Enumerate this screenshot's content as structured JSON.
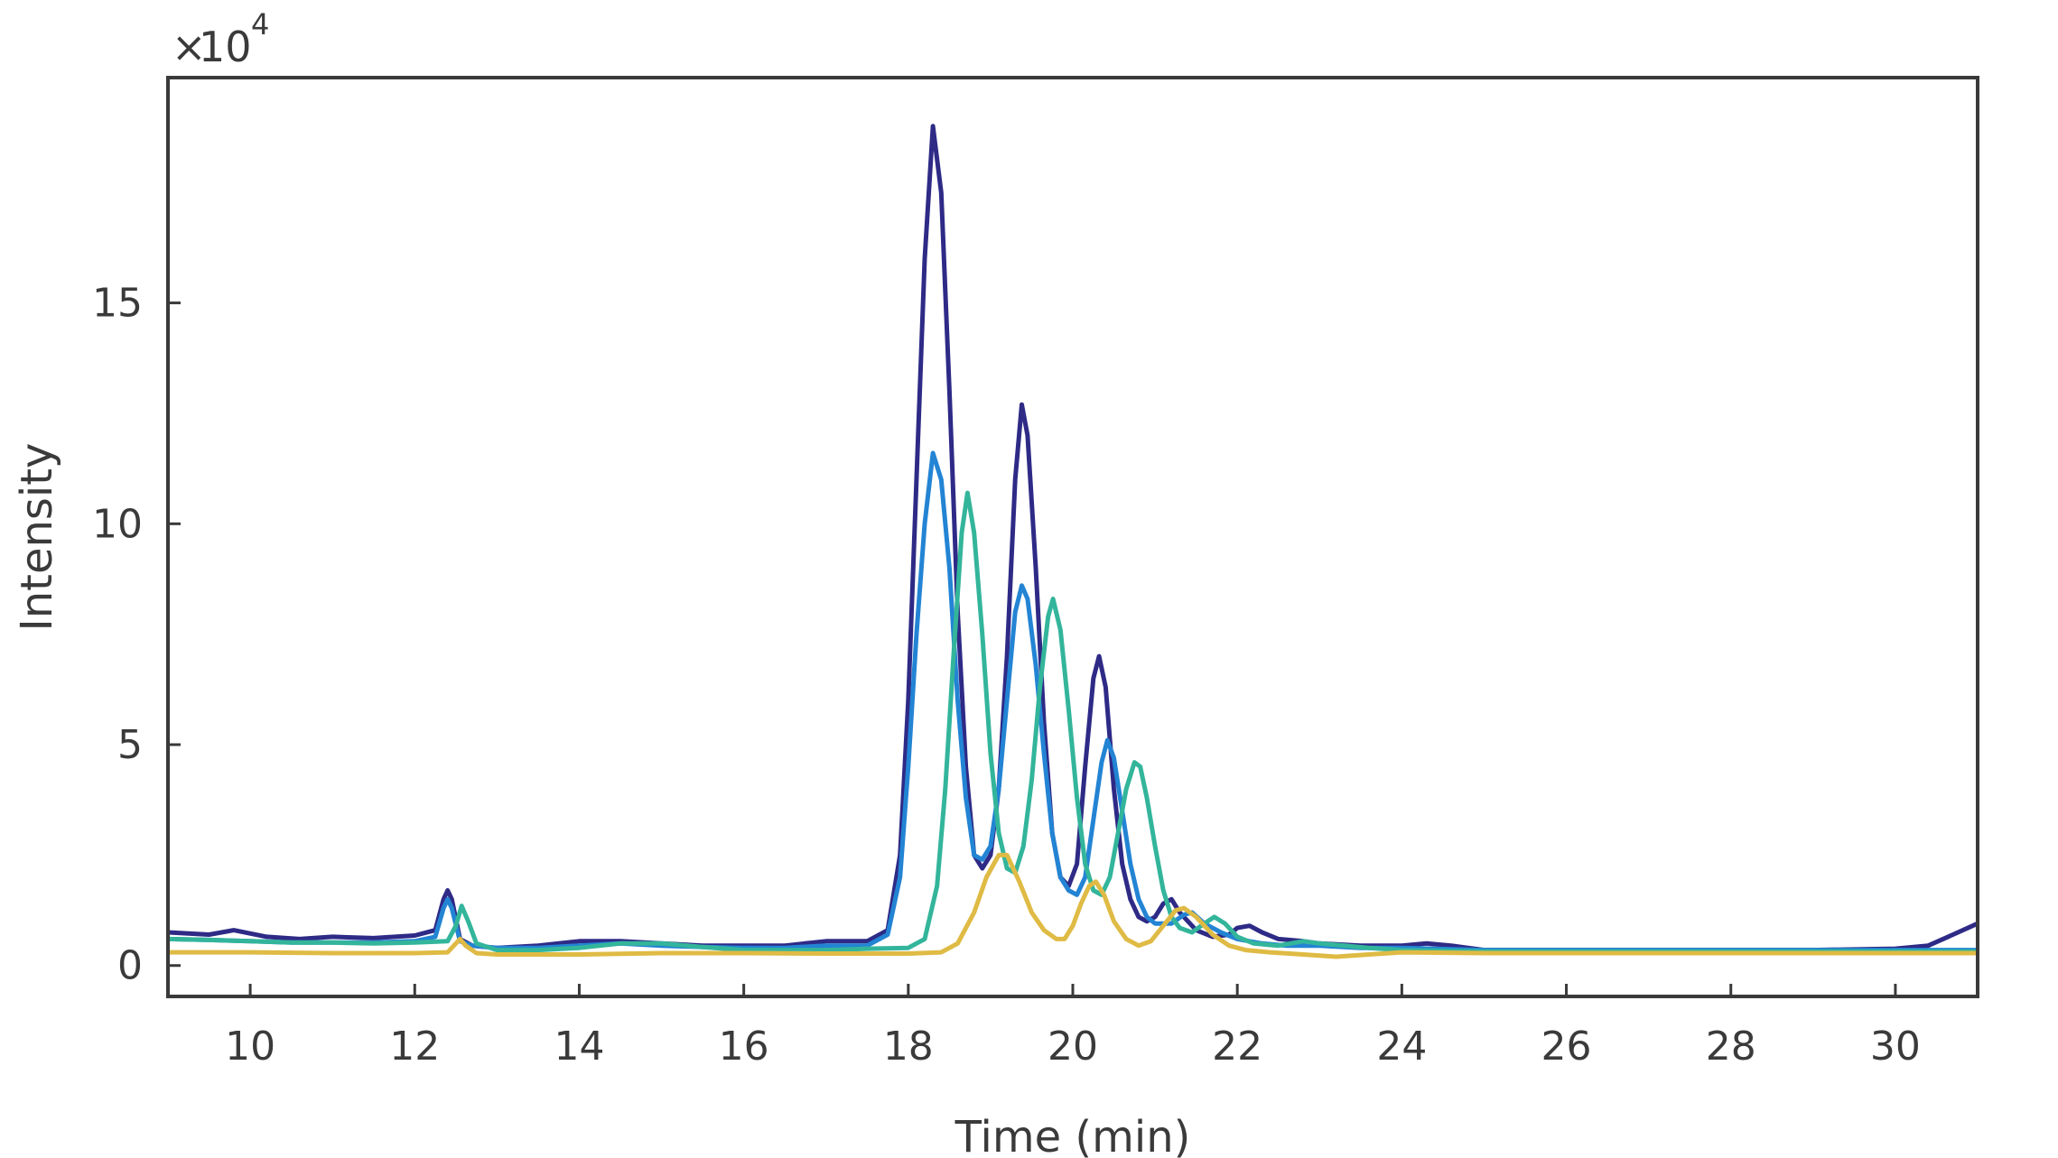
{
  "chart_data": {
    "type": "line",
    "xlabel": "Time (min)",
    "ylabel": "Intensity",
    "xlim": [
      9,
      31
    ],
    "ylim": [
      -0.7,
      20.1
    ],
    "y_scale_multiplier": {
      "times": "×",
      "base": "10",
      "exponent": "4"
    },
    "x_ticks": [
      10,
      12,
      14,
      16,
      18,
      20,
      22,
      24,
      26,
      28,
      30
    ],
    "y_ticks": [
      0,
      5,
      10,
      15
    ],
    "grid": false,
    "legend": "none",
    "series": [
      {
        "color": "#2e2a86",
        "points": [
          [
            9,
            0.75
          ],
          [
            9.5,
            0.7
          ],
          [
            9.8,
            0.8
          ],
          [
            10.2,
            0.65
          ],
          [
            10.6,
            0.6
          ],
          [
            11.0,
            0.65
          ],
          [
            11.5,
            0.62
          ],
          [
            12.0,
            0.68
          ],
          [
            12.25,
            0.8
          ],
          [
            12.35,
            1.5
          ],
          [
            12.4,
            1.7
          ],
          [
            12.45,
            1.5
          ],
          [
            12.55,
            0.6
          ],
          [
            12.7,
            0.45
          ],
          [
            13.0,
            0.4
          ],
          [
            13.5,
            0.45
          ],
          [
            14.0,
            0.55
          ],
          [
            14.5,
            0.55
          ],
          [
            15.0,
            0.5
          ],
          [
            15.5,
            0.45
          ],
          [
            16.0,
            0.45
          ],
          [
            16.5,
            0.45
          ],
          [
            17.0,
            0.55
          ],
          [
            17.5,
            0.55
          ],
          [
            17.75,
            0.8
          ],
          [
            17.9,
            2.5
          ],
          [
            18.0,
            6.0
          ],
          [
            18.1,
            11.0
          ],
          [
            18.2,
            16.0
          ],
          [
            18.3,
            19.0
          ],
          [
            18.4,
            17.5
          ],
          [
            18.5,
            13.0
          ],
          [
            18.6,
            8.0
          ],
          [
            18.7,
            4.5
          ],
          [
            18.8,
            2.5
          ],
          [
            18.9,
            2.2
          ],
          [
            19.0,
            2.5
          ],
          [
            19.1,
            4.0
          ],
          [
            19.2,
            7.0
          ],
          [
            19.3,
            11.0
          ],
          [
            19.38,
            12.7
          ],
          [
            19.45,
            12.0
          ],
          [
            19.55,
            9.0
          ],
          [
            19.65,
            5.5
          ],
          [
            19.75,
            3.0
          ],
          [
            19.85,
            2.0
          ],
          [
            19.95,
            1.8
          ],
          [
            20.05,
            2.3
          ],
          [
            20.15,
            4.5
          ],
          [
            20.25,
            6.5
          ],
          [
            20.32,
            7.0
          ],
          [
            20.4,
            6.3
          ],
          [
            20.5,
            4.0
          ],
          [
            20.6,
            2.3
          ],
          [
            20.7,
            1.5
          ],
          [
            20.8,
            1.1
          ],
          [
            20.9,
            1.0
          ],
          [
            21.0,
            1.1
          ],
          [
            21.1,
            1.4
          ],
          [
            21.2,
            1.5
          ],
          [
            21.3,
            1.2
          ],
          [
            21.5,
            0.8
          ],
          [
            21.7,
            0.65
          ],
          [
            21.9,
            0.7
          ],
          [
            22.0,
            0.85
          ],
          [
            22.15,
            0.9
          ],
          [
            22.3,
            0.75
          ],
          [
            22.5,
            0.6
          ],
          [
            22.8,
            0.55
          ],
          [
            23.0,
            0.5
          ],
          [
            23.5,
            0.45
          ],
          [
            24.0,
            0.45
          ],
          [
            24.3,
            0.5
          ],
          [
            24.6,
            0.45
          ],
          [
            25.0,
            0.35
          ],
          [
            26.0,
            0.35
          ],
          [
            27.0,
            0.35
          ],
          [
            28.0,
            0.35
          ],
          [
            29.0,
            0.35
          ],
          [
            30.0,
            0.38
          ],
          [
            30.4,
            0.45
          ],
          [
            30.7,
            0.7
          ],
          [
            31.0,
            0.95
          ]
        ]
      },
      {
        "color": "#2384d4",
        "points": [
          [
            9,
            0.6
          ],
          [
            9.5,
            0.58
          ],
          [
            10.0,
            0.55
          ],
          [
            10.5,
            0.52
          ],
          [
            11.0,
            0.52
          ],
          [
            11.5,
            0.52
          ],
          [
            12.0,
            0.55
          ],
          [
            12.25,
            0.65
          ],
          [
            12.35,
            1.3
          ],
          [
            12.4,
            1.5
          ],
          [
            12.45,
            1.3
          ],
          [
            12.55,
            0.55
          ],
          [
            12.7,
            0.45
          ],
          [
            13.0,
            0.4
          ],
          [
            13.5,
            0.4
          ],
          [
            14.0,
            0.45
          ],
          [
            14.5,
            0.5
          ],
          [
            15.0,
            0.45
          ],
          [
            15.5,
            0.42
          ],
          [
            16.0,
            0.4
          ],
          [
            16.5,
            0.4
          ],
          [
            17.0,
            0.45
          ],
          [
            17.5,
            0.45
          ],
          [
            17.75,
            0.7
          ],
          [
            17.9,
            2.0
          ],
          [
            18.0,
            4.5
          ],
          [
            18.1,
            7.5
          ],
          [
            18.2,
            10.0
          ],
          [
            18.3,
            11.6
          ],
          [
            18.4,
            11.0
          ],
          [
            18.5,
            9.0
          ],
          [
            18.6,
            6.0
          ],
          [
            18.7,
            3.8
          ],
          [
            18.8,
            2.5
          ],
          [
            18.9,
            2.4
          ],
          [
            19.0,
            2.7
          ],
          [
            19.1,
            4.0
          ],
          [
            19.2,
            6.0
          ],
          [
            19.3,
            8.0
          ],
          [
            19.38,
            8.6
          ],
          [
            19.45,
            8.3
          ],
          [
            19.55,
            6.8
          ],
          [
            19.65,
            4.8
          ],
          [
            19.75,
            3.0
          ],
          [
            19.85,
            2.0
          ],
          [
            19.95,
            1.7
          ],
          [
            20.05,
            1.6
          ],
          [
            20.15,
            2.0
          ],
          [
            20.25,
            3.3
          ],
          [
            20.35,
            4.6
          ],
          [
            20.42,
            5.1
          ],
          [
            20.5,
            4.7
          ],
          [
            20.6,
            3.5
          ],
          [
            20.7,
            2.3
          ],
          [
            20.8,
            1.5
          ],
          [
            20.9,
            1.1
          ],
          [
            21.0,
            0.95
          ],
          [
            21.2,
            0.95
          ],
          [
            21.35,
            1.15
          ],
          [
            21.45,
            1.2
          ],
          [
            21.6,
            0.95
          ],
          [
            21.8,
            0.75
          ],
          [
            22.0,
            0.6
          ],
          [
            22.3,
            0.5
          ],
          [
            22.6,
            0.45
          ],
          [
            23.0,
            0.45
          ],
          [
            23.5,
            0.4
          ],
          [
            24.0,
            0.4
          ],
          [
            25.0,
            0.35
          ],
          [
            26.0,
            0.35
          ],
          [
            27.0,
            0.35
          ],
          [
            28.0,
            0.35
          ],
          [
            29.0,
            0.35
          ],
          [
            30.0,
            0.35
          ],
          [
            31.0,
            0.35
          ]
        ]
      },
      {
        "color": "#33b59b",
        "points": [
          [
            9,
            0.6
          ],
          [
            9.5,
            0.58
          ],
          [
            10.0,
            0.55
          ],
          [
            10.5,
            0.52
          ],
          [
            11.0,
            0.52
          ],
          [
            11.5,
            0.5
          ],
          [
            12.0,
            0.52
          ],
          [
            12.4,
            0.55
          ],
          [
            12.5,
            0.9
          ],
          [
            12.57,
            1.35
          ],
          [
            12.65,
            1.0
          ],
          [
            12.75,
            0.5
          ],
          [
            13.0,
            0.35
          ],
          [
            13.5,
            0.35
          ],
          [
            14.0,
            0.4
          ],
          [
            14.5,
            0.5
          ],
          [
            15.0,
            0.5
          ],
          [
            15.5,
            0.42
          ],
          [
            16.0,
            0.35
          ],
          [
            16.5,
            0.35
          ],
          [
            17.0,
            0.35
          ],
          [
            17.5,
            0.38
          ],
          [
            18.0,
            0.4
          ],
          [
            18.2,
            0.6
          ],
          [
            18.35,
            1.8
          ],
          [
            18.45,
            4.0
          ],
          [
            18.55,
            7.0
          ],
          [
            18.65,
            9.8
          ],
          [
            18.72,
            10.7
          ],
          [
            18.8,
            9.8
          ],
          [
            18.9,
            7.5
          ],
          [
            19.0,
            4.8
          ],
          [
            19.1,
            3.0
          ],
          [
            19.2,
            2.2
          ],
          [
            19.3,
            2.1
          ],
          [
            19.4,
            2.7
          ],
          [
            19.5,
            4.2
          ],
          [
            19.6,
            6.3
          ],
          [
            19.7,
            7.9
          ],
          [
            19.76,
            8.3
          ],
          [
            19.85,
            7.6
          ],
          [
            19.95,
            5.8
          ],
          [
            20.05,
            3.8
          ],
          [
            20.15,
            2.3
          ],
          [
            20.25,
            1.7
          ],
          [
            20.35,
            1.6
          ],
          [
            20.45,
            2.0
          ],
          [
            20.55,
            3.0
          ],
          [
            20.65,
            4.0
          ],
          [
            20.75,
            4.6
          ],
          [
            20.82,
            4.5
          ],
          [
            20.9,
            3.8
          ],
          [
            21.0,
            2.7
          ],
          [
            21.1,
            1.7
          ],
          [
            21.2,
            1.1
          ],
          [
            21.3,
            0.85
          ],
          [
            21.45,
            0.75
          ],
          [
            21.6,
            0.95
          ],
          [
            21.72,
            1.1
          ],
          [
            21.85,
            0.95
          ],
          [
            22.0,
            0.65
          ],
          [
            22.2,
            0.5
          ],
          [
            22.5,
            0.45
          ],
          [
            22.8,
            0.55
          ],
          [
            23.0,
            0.5
          ],
          [
            23.3,
            0.45
          ],
          [
            23.6,
            0.4
          ],
          [
            24.0,
            0.35
          ],
          [
            25.0,
            0.32
          ],
          [
            26.0,
            0.32
          ],
          [
            27.0,
            0.32
          ],
          [
            28.0,
            0.32
          ],
          [
            29.0,
            0.32
          ],
          [
            30.0,
            0.32
          ],
          [
            31.0,
            0.32
          ]
        ]
      },
      {
        "color": "#dfbb45",
        "points": [
          [
            9,
            0.3
          ],
          [
            10.0,
            0.3
          ],
          [
            11.0,
            0.28
          ],
          [
            12.0,
            0.28
          ],
          [
            12.4,
            0.3
          ],
          [
            12.5,
            0.5
          ],
          [
            12.55,
            0.6
          ],
          [
            12.62,
            0.45
          ],
          [
            12.75,
            0.28
          ],
          [
            13.0,
            0.25
          ],
          [
            14.0,
            0.25
          ],
          [
            15.0,
            0.28
          ],
          [
            16.0,
            0.28
          ],
          [
            17.0,
            0.27
          ],
          [
            18.0,
            0.27
          ],
          [
            18.4,
            0.3
          ],
          [
            18.6,
            0.5
          ],
          [
            18.8,
            1.2
          ],
          [
            18.95,
            2.0
          ],
          [
            19.1,
            2.5
          ],
          [
            19.2,
            2.5
          ],
          [
            19.35,
            1.9
          ],
          [
            19.5,
            1.2
          ],
          [
            19.65,
            0.8
          ],
          [
            19.8,
            0.6
          ],
          [
            19.9,
            0.6
          ],
          [
            20.0,
            0.9
          ],
          [
            20.1,
            1.4
          ],
          [
            20.2,
            1.8
          ],
          [
            20.28,
            1.9
          ],
          [
            20.38,
            1.6
          ],
          [
            20.5,
            1.0
          ],
          [
            20.65,
            0.6
          ],
          [
            20.8,
            0.45
          ],
          [
            20.95,
            0.55
          ],
          [
            21.1,
            0.9
          ],
          [
            21.25,
            1.25
          ],
          [
            21.35,
            1.3
          ],
          [
            21.5,
            1.1
          ],
          [
            21.7,
            0.7
          ],
          [
            21.9,
            0.45
          ],
          [
            22.1,
            0.35
          ],
          [
            22.4,
            0.3
          ],
          [
            22.8,
            0.25
          ],
          [
            23.2,
            0.2
          ],
          [
            23.6,
            0.25
          ],
          [
            24.0,
            0.3
          ],
          [
            25.0,
            0.28
          ],
          [
            26.0,
            0.28
          ],
          [
            27.0,
            0.28
          ],
          [
            28.0,
            0.28
          ],
          [
            29.0,
            0.28
          ],
          [
            30.0,
            0.28
          ],
          [
            31.0,
            0.28
          ]
        ]
      }
    ]
  }
}
